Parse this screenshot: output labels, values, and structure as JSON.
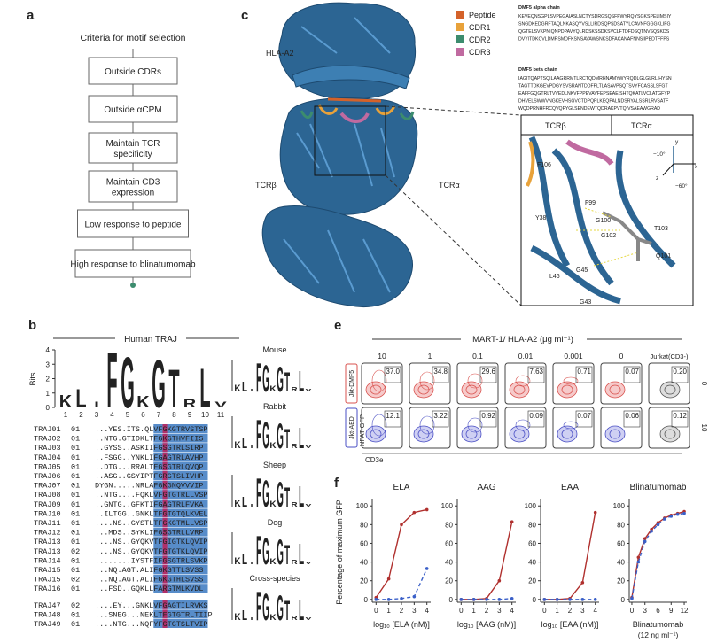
{
  "panel_labels": {
    "a": "a",
    "b": "b",
    "c": "c",
    "e": "e",
    "f": "f"
  },
  "panel_a": {
    "title": "Criteria for motif selection",
    "steps": [
      [
        "Outside CDRs"
      ],
      [
        "Outside αCPM"
      ],
      [
        "Maintain TCR",
        "specificity"
      ],
      [
        "Maintain CD3",
        "expression"
      ],
      [
        "Low response to peptide"
      ],
      [
        "High response to blinatumomab"
      ]
    ]
  },
  "panel_b": {
    "title": "Human TRAJ",
    "y_label": "Bits",
    "ylim": [
      0,
      4
    ],
    "yticks": [
      0,
      1,
      2,
      3,
      4
    ],
    "positions": [
      1,
      2,
      3,
      4,
      5,
      6,
      7,
      8,
      9,
      10,
      11
    ],
    "logo": [
      {
        "letter": "K",
        "bits": 0.9,
        "color": "#c0305a"
      },
      {
        "letter": "L",
        "bits": 1.3,
        "color": "#2f6db5"
      },
      {
        "letter": "I",
        "bits": 0.4,
        "color": "#2f6db5"
      },
      {
        "letter": "F",
        "bits": 3.9,
        "color": "#d09a5a"
      },
      {
        "letter": "G",
        "bits": 3.6,
        "color": "#d09a5a"
      },
      {
        "letter": "K",
        "bits": 0.8,
        "color": "#c0305a"
      },
      {
        "letter": "G",
        "bits": 3.4,
        "color": "#d09a5a"
      },
      {
        "letter": "T",
        "bits": 2.7,
        "color": "#d09a5a"
      },
      {
        "letter": "R",
        "bits": 0.6,
        "color": "#c0305a"
      },
      {
        "letter": "L",
        "bits": 2.8,
        "color": "#2f6db5"
      },
      {
        "letter": "V",
        "bits": 0.4,
        "color": "#2f6db5"
      }
    ],
    "rows": [
      [
        "TRAJ01",
        "01",
        "...YES.ITS.QLVFGKGTRVSTSP"
      ],
      [
        "TRAJ02",
        "01",
        "..NTG.GTIDKLTFGKGTHVFIIS"
      ],
      [
        "TRAJ03",
        "01",
        "..GYSS..ASKIIFGSGTRLSIRP"
      ],
      [
        "TRAJ04",
        "01",
        "..FSGG..YNKLIFGAGTRLAVHP"
      ],
      [
        "TRAJ05",
        "01",
        "..DTG...RRALTFGSGTRLQVQP"
      ],
      [
        "TRAJ06",
        "01",
        "..ASG..GSYIPTFGRGTSLIVHP"
      ],
      [
        "TRAJ07",
        "01",
        "DYGN.....NRLAFGKGNQVVVIP"
      ],
      [
        "TRAJ08",
        "01",
        "..NTG....FQKLVFGTGTRLLVSP"
      ],
      [
        "TRAJ09",
        "01",
        "..GNTG..GFKTIFGAGTRLFVKA"
      ],
      [
        "TRAJ10",
        "01",
        "..ILTGG..GNKLTFGTGTQLKVEL"
      ],
      [
        "TRAJ11",
        "01",
        "....NS..GYSTLTFGKGTMLLVSP"
      ],
      [
        "TRAJ12",
        "01",
        "...MDS..SYKLIFGSGTRLLVRP"
      ],
      [
        "TRAJ13",
        "01",
        "....NS..GYQKVTFGIGTKLQVIP"
      ],
      [
        "TRAJ13",
        "02",
        "....NS..GYQKVTFGTGTKLQVIP"
      ],
      [
        "TRAJ14",
        "01",
        "........IYSTFIFGSGTRLSVKP"
      ],
      [
        "TRAJ15",
        "01",
        "...NQ.AGT.ALIFGKGTTLSVSS"
      ],
      [
        "TRAJ15",
        "02",
        "...NQ.AGT.ALIFGKGTHLSVSS"
      ],
      [
        "TRAJ16",
        "01",
        "...FSD..GQKLLFARGTMLKVDL"
      ],
      [
        "TRAJ47",
        "02",
        "....EY...GNKLVFGAGTILRVKS"
      ],
      [
        "TRAJ48",
        "01",
        "...SNEG...NEKLTFGTGTRLTIIP"
      ],
      [
        "TRAJ49",
        "01",
        "....NTG...NQFYFGTGTSLTVIP"
      ]
    ],
    "species": [
      "Mouse",
      "Rabbit",
      "Sheep",
      "Dog",
      "Cross-species"
    ]
  },
  "panel_c": {
    "structure_labels": {
      "hla": "HLA-A2",
      "tcr_beta": "TCRβ",
      "tcr_alpha": "TCRα"
    },
    "legend": [
      {
        "label": "Peptide",
        "color": "#d4622a"
      },
      {
        "label": "CDR1",
        "color": "#e8a23a"
      },
      {
        "label": "CDR2",
        "color": "#3c8c6e"
      },
      {
        "label": "CDR3",
        "color": "#c06aa0"
      }
    ],
    "alpha_title": "DMF5 alpha chain",
    "alpha_lines": [
      "KEVEQNSGPLSVPEGAIASLNCTYSDRGSQSFFWYRQYSGKSPELIMSIY",
      "SNGDKEDGRFTAQLNKASQYVSLLIRDSQPSDSATYLCAVNFGGGKLIFG",
      "QGTELSVKPNIQNPDPAVYQLRDSKSSDKSVCLFTDFDSQTNVSQSKDS",
      "DVYITDKCVLDMRSMDFKSNSAVAWSNKSDFACANAFNNSIIPEDTFFPS"
    ],
    "beta_title": "DMF5 beta chain",
    "beta_lines": [
      "IAGITQAPTSQILAAGRRMTLRCTQDMRHNAMYWYRQDLGLGLRLIHYSN",
      "TAGTTDKGEVPDGYSVSRANTDDFPLTLASAVPSQTSVYFCASSLSFGT",
      "EAFFGQGTRLTVVEDLNKVFPPEVAVFEPSEAEISHTQKATLVCLATGFYP",
      "DHVELSWWVNGKEVHSGVCTDPQPLKEQPALNDSRYALSSRLRVSATF",
      "WQDPRNHFRCQVQFYGLSENDEWTQDRAKPVTQIVSAEAWGRAD"
    ],
    "inset": {
      "headers": [
        "TCRβ",
        "TCRα"
      ],
      "residues": [
        "F106",
        "F99",
        "G100",
        "Y38",
        "G102",
        "T103",
        "Q101",
        "L46",
        "G45",
        "G43"
      ],
      "axes": [
        "y",
        "x",
        "z",
        "−10°",
        "−60°"
      ]
    }
  },
  "panel_e": {
    "header": "MART-1/ HLA-A2 (μg ml⁻¹)",
    "columns": [
      "10",
      "1",
      "0.1",
      "0.01",
      "0.001",
      "0",
      "Jurkat(CD3-)"
    ],
    "rows": [
      {
        "label": "Jkt-DMF5",
        "side": "0",
        "cells": [
          "37.0",
          "34.8",
          "29.6",
          "7.63",
          "0.71",
          "0.07",
          "0.20"
        ]
      },
      {
        "label": "Jkt-AED",
        "side": "10",
        "cells": [
          "12.1",
          "3.22",
          "0.92",
          "0.09",
          "0.07",
          "0.06",
          "0.12"
        ]
      }
    ],
    "y_label": "NFAT-GFP",
    "x_label": "CD3e"
  },
  "chart_data": [
    {
      "type": "line",
      "title": "ELA",
      "y_label": "Percentage of maximum GFP",
      "x_label": "log₁₀ [ELA (nM)]",
      "x": [
        0,
        1,
        2,
        3,
        4
      ],
      "xlim": [
        -0.3,
        4.3
      ],
      "xticks": [
        0,
        1,
        2,
        3,
        4
      ],
      "ylim": [
        -3,
        104
      ],
      "yticks": [
        0,
        20,
        40,
        60,
        80,
        100
      ],
      "series": [
        {
          "color": "#b0302e",
          "line_style": "solid",
          "values": [
            2,
            22,
            80,
            93,
            96
          ]
        },
        {
          "color": "#3a5fc8",
          "line_style": "dashed",
          "values": [
            0,
            0,
            1,
            3,
            33
          ]
        }
      ]
    },
    {
      "type": "line",
      "title": "AAG",
      "x_label": "log₁₀ [AAG (nM)]",
      "x": [
        0,
        1,
        2,
        3,
        4
      ],
      "xlim": [
        -0.3,
        4.3
      ],
      "xticks": [
        0,
        1,
        2,
        3,
        4
      ],
      "ylim": [
        -3,
        104
      ],
      "yticks": [
        0,
        20,
        40,
        60,
        80,
        100
      ],
      "series": [
        {
          "color": "#b0302e",
          "line_style": "solid",
          "values": [
            0,
            0,
            1,
            20,
            83
          ]
        },
        {
          "color": "#3a5fc8",
          "line_style": "dashed",
          "values": [
            0,
            0,
            0,
            0,
            1
          ]
        }
      ]
    },
    {
      "type": "line",
      "title": "EAA",
      "x_label": "log₁₀ [EAA (nM)]",
      "x": [
        0,
        1,
        2,
        3,
        4
      ],
      "xlim": [
        -0.3,
        4.3
      ],
      "xticks": [
        0,
        1,
        2,
        3,
        4
      ],
      "ylim": [
        -3,
        104
      ],
      "yticks": [
        0,
        20,
        40,
        60,
        80,
        100
      ],
      "series": [
        {
          "color": "#b0302e",
          "line_style": "solid",
          "values": [
            0,
            0,
            1,
            18,
            93
          ]
        },
        {
          "color": "#3a5fc8",
          "line_style": "dashed",
          "values": [
            0,
            0,
            0,
            0,
            0
          ]
        }
      ]
    },
    {
      "type": "line",
      "title": "Blinatumomab",
      "x_label": "Blinatumomab",
      "x_label_note": "(12 ng ml⁻¹)",
      "x": [
        0,
        1.5,
        3,
        4.5,
        6,
        7.5,
        9,
        10.5,
        12
      ],
      "xlim": [
        -0.6,
        12.6
      ],
      "xticks": [
        0,
        3,
        6,
        9,
        12
      ],
      "ylim": [
        -3,
        104
      ],
      "yticks": [
        0,
        20,
        40,
        60,
        80,
        100
      ],
      "series": [
        {
          "color": "#b0302e",
          "line_style": "solid",
          "values": [
            2,
            45,
            65,
            75,
            82,
            87,
            90,
            92,
            94
          ]
        },
        {
          "color": "#3a5fc8",
          "line_style": "dashed",
          "values": [
            1,
            40,
            62,
            73,
            80,
            86,
            89,
            91,
            92
          ]
        }
      ]
    }
  ]
}
